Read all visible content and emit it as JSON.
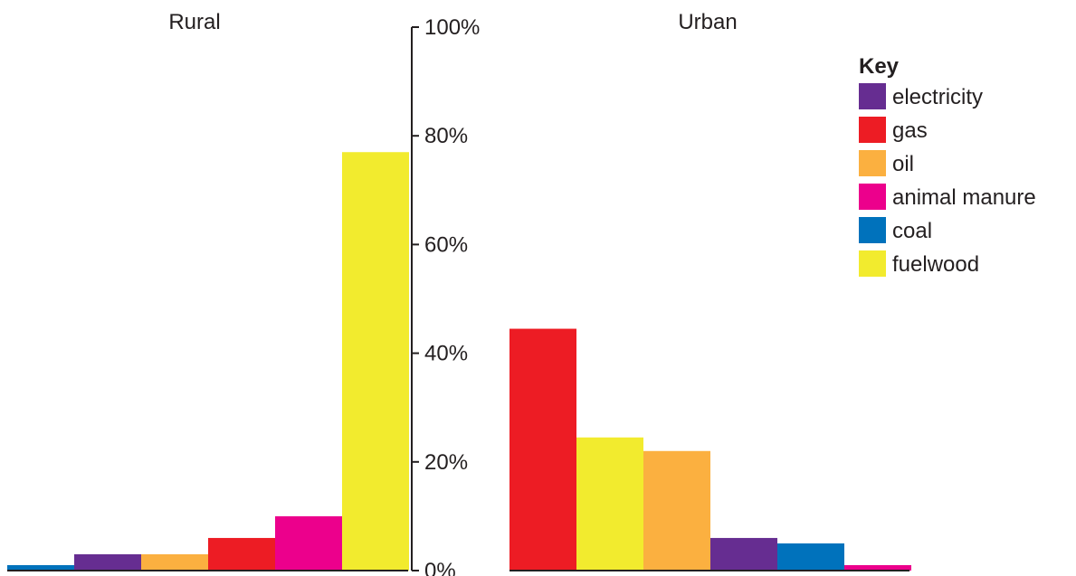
{
  "chart_data": {
    "type": "bar",
    "yticks": [
      "0%",
      "20%",
      "40%",
      "60%",
      "80%",
      "100%"
    ],
    "ylim": [
      0,
      100
    ],
    "grid": false,
    "legend": {
      "title": "Key",
      "placement": "top-right",
      "items": [
        {
          "name": "electricity",
          "color": "#662d91"
        },
        {
          "name": "gas",
          "color": "#ed1c24"
        },
        {
          "name": "oil",
          "color": "#fbb040"
        },
        {
          "name": "animal manure",
          "color": "#ec008c"
        },
        {
          "name": "coal",
          "color": "#0072bc"
        },
        {
          "name": "fuelwood",
          "color": "#f2eb2e"
        }
      ]
    },
    "panels": [
      {
        "title": "Rural",
        "bars": [
          {
            "category": "coal",
            "value": 1
          },
          {
            "category": "electricity",
            "value": 3
          },
          {
            "category": "oil",
            "value": 3
          },
          {
            "category": "gas",
            "value": 6
          },
          {
            "category": "animal manure",
            "value": 10
          },
          {
            "category": "fuelwood",
            "value": 77
          }
        ]
      },
      {
        "title": "Urban",
        "bars": [
          {
            "category": "gas",
            "value": 44.5
          },
          {
            "category": "fuelwood",
            "value": 24.5
          },
          {
            "category": "oil",
            "value": 22
          },
          {
            "category": "electricity",
            "value": 6
          },
          {
            "category": "coal",
            "value": 5
          },
          {
            "category": "animal manure",
            "value": 1
          }
        ]
      }
    ]
  }
}
